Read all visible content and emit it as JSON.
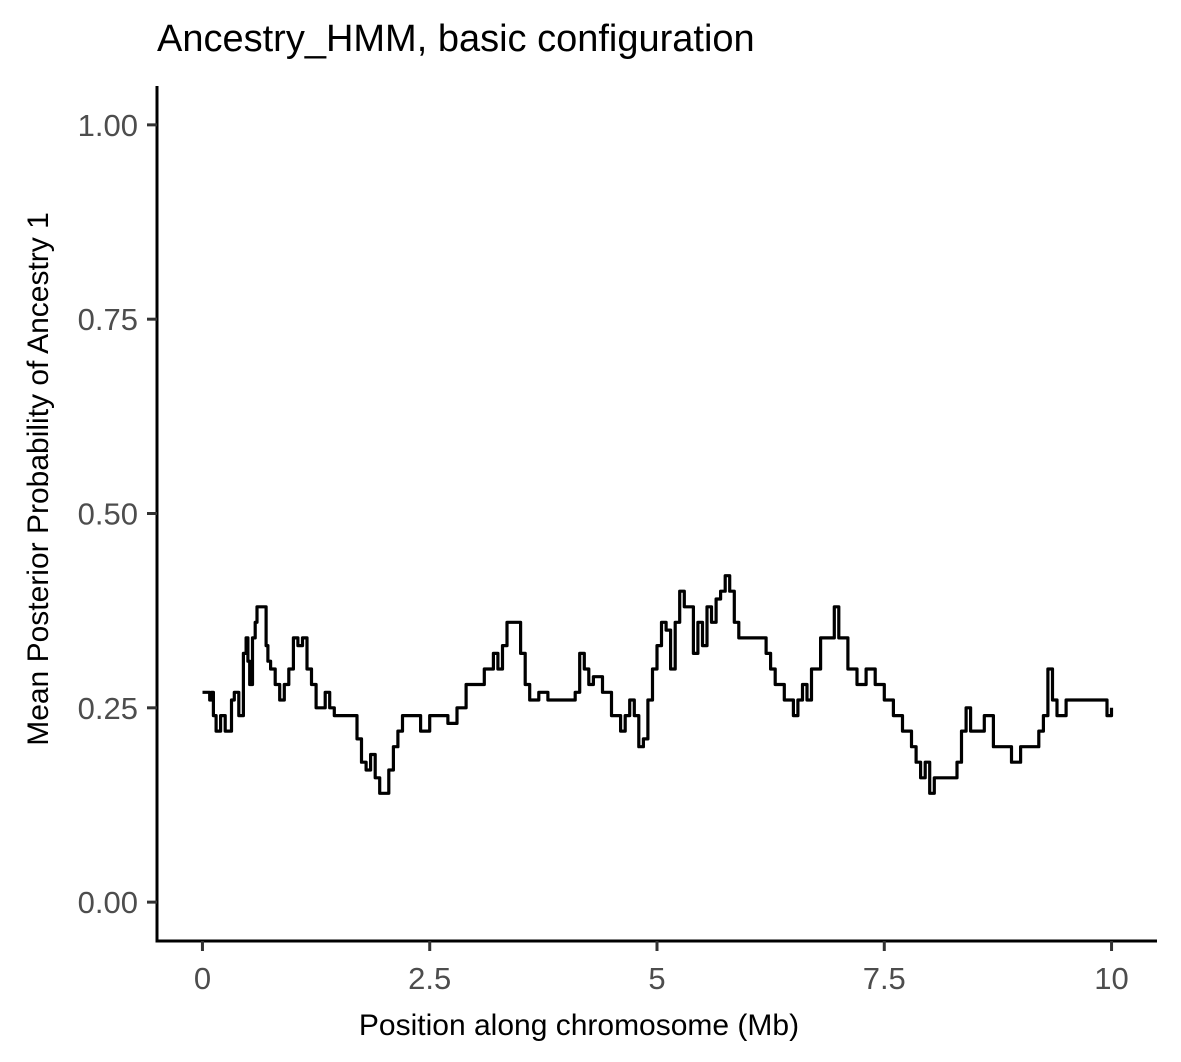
{
  "chart_data": {
    "type": "line",
    "title": "Ancestry_HMM, basic configuration",
    "xlabel": "Position along chromosome (Mb)",
    "ylabel": "Mean Posterior Probability of Ancestry 1",
    "xlim": [
      -0.5,
      10.5
    ],
    "ylim": [
      -0.05,
      1.05
    ],
    "x_ticks": [
      0,
      2.5,
      5,
      7.5,
      10
    ],
    "x_tick_labels": [
      "0",
      "2.5",
      "5",
      "7.5",
      "10"
    ],
    "y_ticks": [
      0,
      0.25,
      0.5,
      0.75,
      1.0
    ],
    "y_tick_labels": [
      "0.00",
      "0.25",
      "0.50",
      "0.75",
      "1.00"
    ],
    "grid": false,
    "legend": "none",
    "line_color": "#000000",
    "series": [
      {
        "x": [
          0,
          0.08,
          0.1,
          0.12,
          0.15,
          0.2,
          0.25,
          0.3,
          0.32,
          0.35,
          0.4,
          0.45,
          0.48,
          0.5,
          0.52,
          0.55,
          0.58,
          0.6,
          0.65,
          0.7,
          0.72,
          0.75,
          0.8,
          0.85,
          0.9,
          0.95,
          1.0,
          1.05,
          1.1,
          1.15,
          1.2,
          1.25,
          1.3,
          1.35,
          1.4,
          1.45,
          1.5,
          1.6,
          1.7,
          1.75,
          1.8,
          1.85,
          1.9,
          1.95,
          2.0,
          2.05,
          2.1,
          2.15,
          2.2,
          2.3,
          2.4,
          2.5,
          2.6,
          2.7,
          2.8,
          2.9,
          3.0,
          3.1,
          3.2,
          3.25,
          3.3,
          3.35,
          3.4,
          3.5,
          3.55,
          3.6,
          3.7,
          3.8,
          3.9,
          4.0,
          4.1,
          4.15,
          4.2,
          4.25,
          4.3,
          4.4,
          4.5,
          4.6,
          4.65,
          4.7,
          4.75,
          4.8,
          4.85,
          4.9,
          4.95,
          5.0,
          5.05,
          5.1,
          5.15,
          5.2,
          5.25,
          5.3,
          5.4,
          5.45,
          5.5,
          5.55,
          5.6,
          5.65,
          5.7,
          5.75,
          5.8,
          5.85,
          5.9,
          6.0,
          6.1,
          6.2,
          6.25,
          6.3,
          6.4,
          6.5,
          6.55,
          6.6,
          6.65,
          6.7,
          6.8,
          6.9,
          6.95,
          7.0,
          7.1,
          7.2,
          7.3,
          7.4,
          7.5,
          7.6,
          7.7,
          7.8,
          7.85,
          7.9,
          7.95,
          8.0,
          8.05,
          8.1,
          8.2,
          8.3,
          8.35,
          8.4,
          8.45,
          8.5,
          8.6,
          8.7,
          8.8,
          8.85,
          8.9,
          9.0,
          9.1,
          9.2,
          9.25,
          9.3,
          9.35,
          9.4,
          9.5,
          9.6,
          9.7,
          9.8,
          9.9,
          9.95,
          10.0
        ],
        "y": [
          0.27,
          0.26,
          0.27,
          0.24,
          0.22,
          0.24,
          0.22,
          0.22,
          0.26,
          0.27,
          0.24,
          0.32,
          0.34,
          0.31,
          0.28,
          0.34,
          0.36,
          0.38,
          0.38,
          0.33,
          0.31,
          0.3,
          0.28,
          0.26,
          0.28,
          0.3,
          0.34,
          0.33,
          0.34,
          0.3,
          0.28,
          0.25,
          0.25,
          0.27,
          0.25,
          0.24,
          0.24,
          0.24,
          0.21,
          0.18,
          0.17,
          0.19,
          0.16,
          0.14,
          0.14,
          0.17,
          0.2,
          0.22,
          0.24,
          0.24,
          0.22,
          0.24,
          0.24,
          0.23,
          0.25,
          0.28,
          0.28,
          0.3,
          0.32,
          0.3,
          0.33,
          0.36,
          0.36,
          0.32,
          0.28,
          0.26,
          0.27,
          0.26,
          0.26,
          0.26,
          0.27,
          0.32,
          0.3,
          0.28,
          0.29,
          0.27,
          0.24,
          0.22,
          0.24,
          0.26,
          0.24,
          0.2,
          0.21,
          0.26,
          0.3,
          0.33,
          0.36,
          0.35,
          0.3,
          0.36,
          0.4,
          0.38,
          0.32,
          0.36,
          0.33,
          0.38,
          0.36,
          0.39,
          0.4,
          0.42,
          0.4,
          0.36,
          0.34,
          0.34,
          0.34,
          0.32,
          0.3,
          0.28,
          0.26,
          0.24,
          0.26,
          0.28,
          0.26,
          0.3,
          0.34,
          0.34,
          0.38,
          0.34,
          0.3,
          0.28,
          0.3,
          0.28,
          0.26,
          0.24,
          0.22,
          0.2,
          0.18,
          0.16,
          0.18,
          0.14,
          0.16,
          0.16,
          0.16,
          0.18,
          0.22,
          0.25,
          0.22,
          0.22,
          0.24,
          0.2,
          0.2,
          0.2,
          0.18,
          0.2,
          0.2,
          0.22,
          0.24,
          0.3,
          0.26,
          0.24,
          0.26,
          0.26,
          0.26,
          0.26,
          0.26,
          0.24,
          0.25
        ]
      }
    ]
  }
}
